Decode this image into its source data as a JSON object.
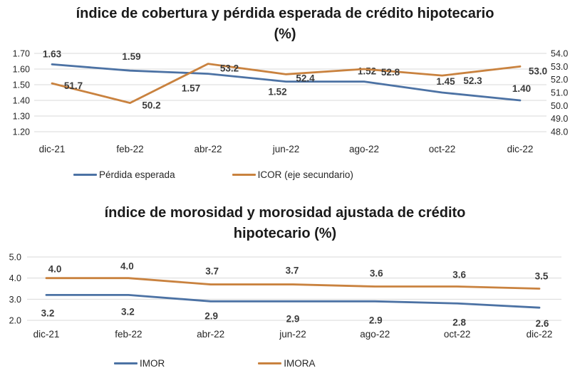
{
  "page_background": "#ffffff",
  "text_color": "#1a1a1a",
  "grid_color": "#d9d9d9",
  "chart_data": [
    {
      "type": "line",
      "title": "índice de cobertura y pérdida esperada de crédito hipotecario (%)",
      "title_lines": [
        "índice de cobertura y pérdida esperada de crédito hipotecario",
        "(%)"
      ],
      "categories": [
        "dic-21",
        "feb-22",
        "abr-22",
        "jun-22",
        "ago-22",
        "oct-22",
        "dic-22"
      ],
      "series": [
        {
          "name": "Pérdida esperada",
          "axis": "left",
          "color": "#4c72a4",
          "values": [
            1.63,
            1.59,
            1.57,
            1.52,
            1.52,
            1.45,
            1.4
          ],
          "labels": [
            "1.63",
            "1.59",
            "1.57",
            "1.52",
            "1.52",
            "1.45",
            "1.40"
          ]
        },
        {
          "name": "ICOR (eje secundario)",
          "axis": "right",
          "color": "#c9823f",
          "values": [
            51.7,
            50.2,
            53.2,
            52.4,
            52.8,
            52.3,
            53.0
          ],
          "labels": [
            "51.7",
            "50.2",
            "53.2",
            "52.4",
            "52.8",
            "52.3",
            "53.0"
          ]
        }
      ],
      "left_axis": {
        "min": 1.2,
        "max": 1.7,
        "tick_values": [
          1.7,
          1.6,
          1.5,
          1.4,
          1.3,
          1.2
        ],
        "ticks": [
          "1.70",
          "1.60",
          "1.50",
          "1.40",
          "1.30",
          "1.20"
        ]
      },
      "right_axis": {
        "min": 48.0,
        "max": 54.0,
        "tick_values": [
          54.0,
          53.0,
          52.0,
          51.0,
          50.0,
          49.0,
          48.0
        ],
        "ticks": [
          "54.0",
          "53.0",
          "52.0",
          "51.0",
          "50.0",
          "49.0",
          "48.0"
        ]
      },
      "grid": true,
      "legend_position": "bottom",
      "xlabel": "",
      "ylabel": ""
    },
    {
      "type": "line",
      "title": "índice de morosidad y morosidad ajustada de crédito hipotecario (%)",
      "title_lines": [
        "índice de morosidad y morosidad ajustada de crédito",
        "hipotecario (%)"
      ],
      "categories": [
        "dic-21",
        "feb-22",
        "abr-22",
        "jun-22",
        "ago-22",
        "oct-22",
        "dic-22"
      ],
      "series": [
        {
          "name": "IMOR",
          "axis": "left",
          "color": "#4c72a4",
          "values": [
            3.2,
            3.2,
            2.9,
            2.9,
            2.9,
            2.8,
            2.6
          ],
          "labels": [
            "3.2",
            "3.2",
            "2.9",
            "2.9",
            "2.9",
            "2.8",
            "2.6"
          ]
        },
        {
          "name": "IMORA",
          "axis": "left",
          "color": "#c9823f",
          "values": [
            4.0,
            4.0,
            3.7,
            3.7,
            3.6,
            3.6,
            3.5
          ],
          "labels": [
            "4.0",
            "4.0",
            "3.7",
            "3.7",
            "3.6",
            "3.6",
            "3.5"
          ]
        }
      ],
      "left_axis": {
        "min": 2.0,
        "max": 5.0,
        "tick_values": [
          5.0,
          4.0,
          3.0,
          2.0
        ],
        "ticks": [
          "5.0",
          "4.0",
          "3.0",
          "2.0"
        ]
      },
      "grid": true,
      "legend_position": "bottom",
      "xlabel": "",
      "ylabel": ""
    }
  ]
}
